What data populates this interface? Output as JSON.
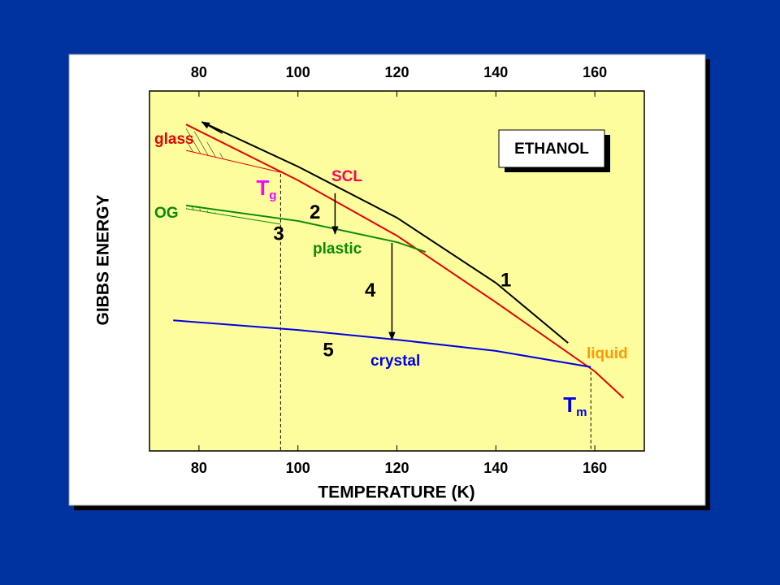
{
  "chart_data": {
    "type": "line",
    "x_label": "TEMPERATURE (K)",
    "y_label": "GIBBS ENERGY",
    "xlim": [
      70,
      170
    ],
    "xticks": [
      80,
      100,
      120,
      140,
      160
    ],
    "ylim": [
      0,
      100
    ],
    "series": [
      {
        "name": "1",
        "color": "#000000",
        "x": [
          80.6,
          100,
          120,
          140,
          154.6
        ],
        "values": [
          91.4,
          79,
          64.8,
          46.7,
          30
        ]
      },
      {
        "name": "SCL",
        "color": "#e60000",
        "x": [
          77.4,
          100,
          120,
          140,
          160,
          165.8
        ],
        "values": [
          90.7,
          75.2,
          59.8,
          41.3,
          22.1,
          14.7
        ]
      },
      {
        "name": "plastic",
        "color": "#0a8a0a",
        "x": [
          77.4,
          100,
          120,
          125.8
        ],
        "values": [
          68.2,
          63.9,
          58,
          55.3
        ]
      },
      {
        "name": "crystal",
        "color": "#0000e6",
        "x": [
          74.8,
          100,
          120,
          140,
          159.2
        ],
        "values": [
          36.3,
          33.6,
          30.9,
          27.8,
          23.3
        ]
      },
      {
        "name": "glass",
        "color": "#e60000",
        "x": [
          77.4,
          96.5
        ],
        "values": [
          83.5,
          77.4
        ]
      },
      {
        "name": "OG",
        "color": "#0a8a0a",
        "x": [
          77.4,
          96.5
        ],
        "values": [
          67.3,
          63
        ]
      }
    ],
    "vlines": [
      {
        "x": 96.5,
        "label": {
          "text": "T",
          "sub": "g"
        },
        "color": "#ff00ff"
      },
      {
        "x": 159.2,
        "label": {
          "text": "T",
          "sub": "m"
        },
        "color": "#0000e6"
      }
    ],
    "arrows": [
      {
        "label": "2",
        "x": 107.5,
        "from": 71.6,
        "to": 60.3
      },
      {
        "label": "4",
        "x": 119,
        "from": 57.8,
        "to": 30.9
      }
    ],
    "annotations": [
      "ETHANOL",
      "liquid",
      "3",
      "5"
    ]
  }
}
